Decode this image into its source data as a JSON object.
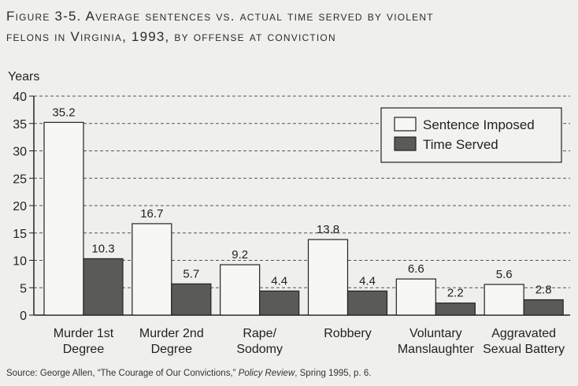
{
  "title_line1": "Figure 3-5. Average sentences vs. actual time served by violent",
  "title_line2": "felons in Virginia, 1993, by offense at conviction",
  "source_prefix": "Source: George Allen, “The Courage of Our Convictions,” ",
  "source_journal": "Policy Review",
  "source_suffix": ", Spring 1995, p. 6.",
  "colors": {
    "imposed_fill": "#f7f7f5",
    "served_fill": "#5a5a58",
    "grid": "#555555"
  },
  "chart_data": {
    "type": "bar",
    "ylabel": "Years",
    "ylim": [
      0,
      40
    ],
    "yticks": [
      0,
      5,
      10,
      15,
      20,
      25,
      30,
      35,
      40
    ],
    "grid": "dashed horizontal",
    "legend_position": "top-right",
    "categories": [
      [
        "Murder 1st",
        "Degree"
      ],
      [
        "Murder 2nd",
        "Degree"
      ],
      [
        "Rape/",
        "Sodomy"
      ],
      [
        "Robbery"
      ],
      [
        "Voluntary",
        "Manslaughter"
      ],
      [
        "Aggravated",
        "Sexual Battery"
      ]
    ],
    "series": [
      {
        "name": "Sentence Imposed",
        "values": [
          35.2,
          16.7,
          9.2,
          13.8,
          6.6,
          5.6
        ],
        "labels": [
          "35.2",
          "16.7",
          "9.2",
          "13.8",
          "6.6",
          "5.6"
        ]
      },
      {
        "name": "Time Served",
        "values": [
          10.3,
          5.7,
          4.4,
          4.4,
          2.2,
          2.8
        ],
        "labels": [
          "10.3",
          "5.7",
          "4.4",
          "4.4",
          "2.2",
          "2.8"
        ]
      }
    ]
  }
}
